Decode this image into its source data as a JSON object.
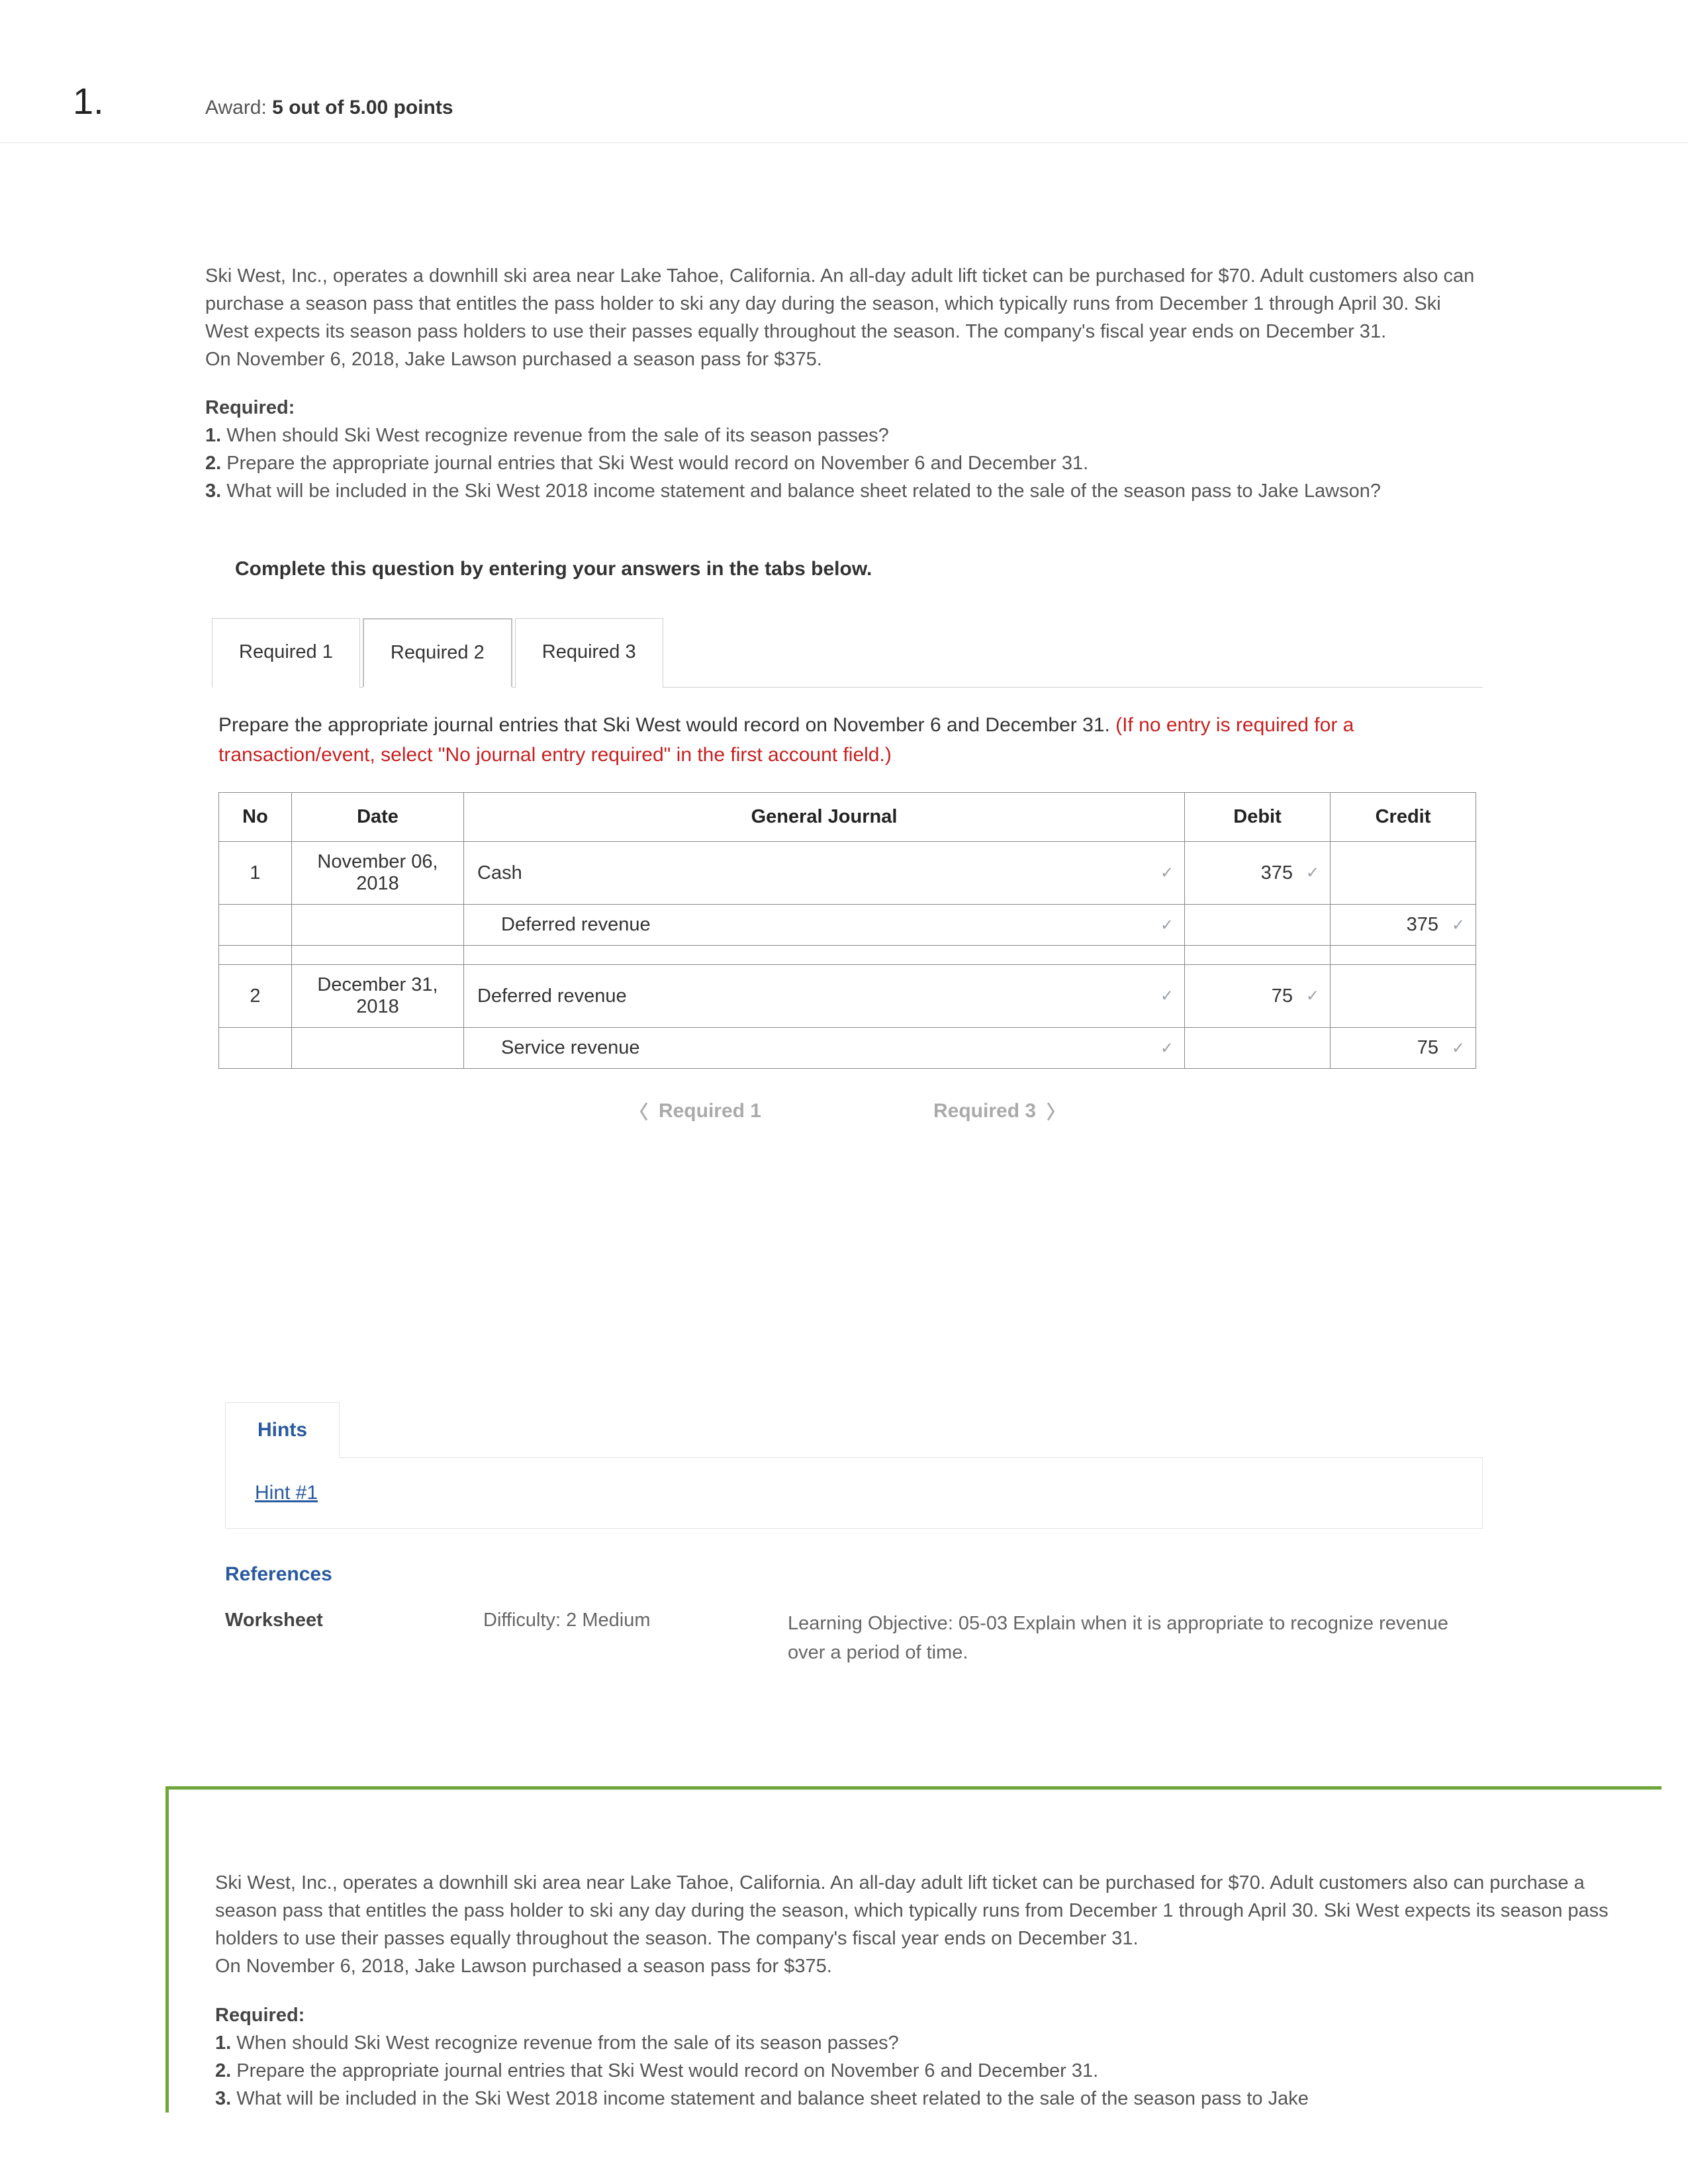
{
  "question": {
    "number": "1.",
    "award_label": "Award:",
    "award_value": "5 out of 5.00 points"
  },
  "prompt": {
    "para1": "Ski West, Inc., operates a downhill ski area near Lake Tahoe, California. An all-day adult lift ticket can be purchased for $70. Adult customers also can purchase a season pass that entitles the pass holder to ski any day during the season, which typically runs from December 1 through April 30. Ski West expects its season pass holders to use their passes equally throughout the season. The company's fiscal year ends on December 31.",
    "para2": "On November 6, 2018, Jake Lawson purchased a season pass for $375.",
    "required_label": "Required:",
    "reqs": [
      "When should Ski West recognize revenue from the sale of its season passes?",
      "Prepare the appropriate journal entries that Ski West would record on November 6 and December 31.",
      "What will be included in the Ski West 2018 income statement and balance sheet related to the sale of the season pass to Jake Lawson?"
    ]
  },
  "tabs": {
    "instruction": "Complete this question by entering your answers in the tabs below.",
    "items": [
      "Required 1",
      "Required 2",
      "Required 3"
    ],
    "active_index": 1,
    "body_black": "Prepare the appropriate journal entries that Ski West would record on November 6 and December 31. ",
    "body_red": "(If no entry is required for a transaction/event, select \"No journal entry required\" in the first account field.)"
  },
  "journal": {
    "headers": {
      "no": "No",
      "date": "Date",
      "gj": "General Journal",
      "debit": "Debit",
      "credit": "Credit"
    },
    "rows": [
      {
        "no": "1",
        "date": "November 06, 2018",
        "account": "Cash",
        "indent": false,
        "debit": "375",
        "credit": ""
      },
      {
        "no": "",
        "date": "",
        "account": "Deferred revenue",
        "indent": true,
        "debit": "",
        "credit": "375"
      },
      {
        "spacer": true
      },
      {
        "no": "2",
        "date": "December 31, 2018",
        "account": "Deferred revenue",
        "indent": false,
        "debit": "75",
        "credit": ""
      },
      {
        "no": "",
        "date": "",
        "account": "Service revenue",
        "indent": true,
        "debit": "",
        "credit": "75"
      }
    ]
  },
  "nav": {
    "prev": "Required 1",
    "next": "Required 3"
  },
  "hints": {
    "tab_label": "Hints",
    "link": "Hint #1",
    "references_label": "References",
    "worksheet": "Worksheet",
    "difficulty": "Difficulty: 2 Medium",
    "lo": "Learning Objective: 05-03 Explain when it is appropriate to recognize revenue over a period of time."
  }
}
